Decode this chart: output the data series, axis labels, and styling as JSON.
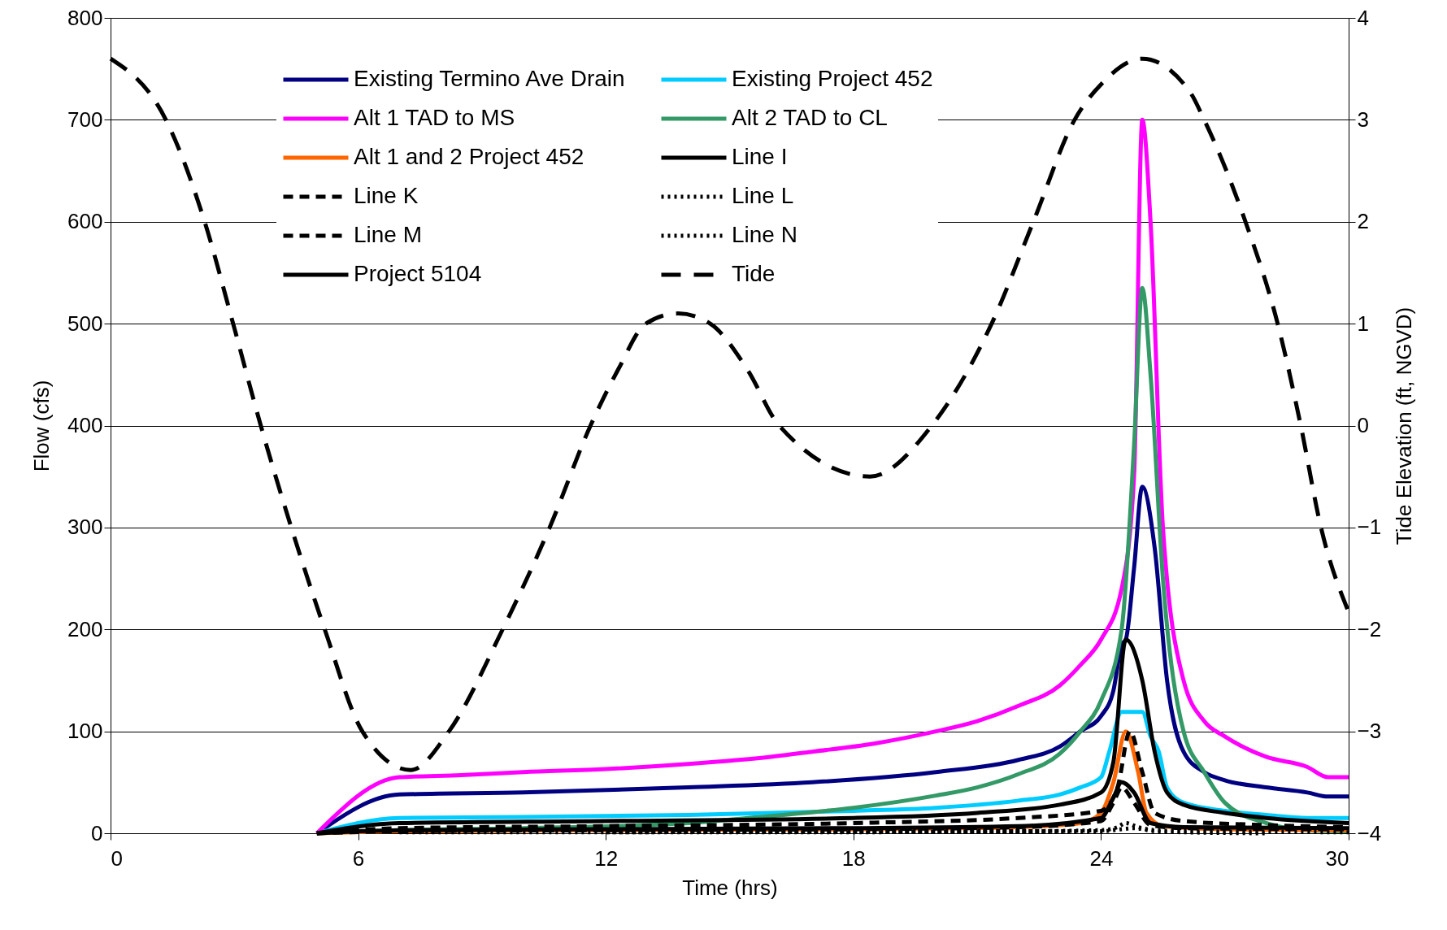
{
  "chart_data": {
    "type": "line",
    "xlabel": "Time (hrs)",
    "ylabel": "Flow (cfs)",
    "y2label": "Tide Elevation (ft, NGVD)",
    "xlim": [
      0,
      30
    ],
    "xticks": [
      0,
      6,
      12,
      18,
      24,
      30
    ],
    "ylim": [
      0,
      800
    ],
    "yticks": [
      0,
      100,
      200,
      300,
      400,
      500,
      600,
      700,
      800
    ],
    "y2lim": [
      -4,
      4
    ],
    "y2ticks": [
      -4,
      -3,
      -2,
      -1,
      0,
      1,
      2,
      3,
      4
    ],
    "grid": "y",
    "legend": "top",
    "series": [
      {
        "name": "Existing Termino Ave Drain",
        "color": "#000080",
        "line_style": "solid",
        "x": [
          5,
          7,
          10,
          14,
          17,
          20,
          22,
          23,
          23.5,
          24,
          24.3,
          24.5,
          24.6,
          24.8,
          25,
          25.3,
          25.6,
          26,
          26.5,
          27,
          28,
          29,
          29.5,
          30
        ],
        "values": [
          0,
          38,
          40,
          45,
          50,
          60,
          72,
          85,
          100,
          115,
          140,
          185,
          190,
          260,
          340,
          280,
          150,
          80,
          60,
          52,
          45,
          40,
          36,
          36
        ]
      },
      {
        "name": "Existing Project 452",
        "color": "#00ccff",
        "line_style": "solid",
        "x": [
          5,
          7,
          10,
          14,
          18,
          20,
          22,
          23,
          23.5,
          24,
          24.2,
          24.5,
          25,
          25.2,
          25.4,
          25.6,
          26,
          27,
          28,
          29,
          30
        ],
        "values": [
          0,
          15,
          16,
          18,
          22,
          25,
          32,
          38,
          45,
          55,
          80,
          119,
          119,
          95,
          80,
          45,
          30,
          22,
          18,
          15,
          15
        ]
      },
      {
        "name": "Alt 1 TAD to MS",
        "color": "#ff00ff",
        "line_style": "solid",
        "x": [
          5,
          7,
          8.5,
          10,
          12,
          14,
          16,
          17,
          18.5,
          20,
          21,
          22,
          23,
          23.5,
          24,
          24.5,
          24.8,
          25,
          25.2,
          25.5,
          26,
          26.5,
          27,
          28,
          29,
          29.5,
          30
        ],
        "values": [
          0,
          55,
          57,
          60,
          63,
          68,
          75,
          80,
          88,
          100,
          110,
          125,
          145,
          165,
          190,
          240,
          350,
          700,
          600,
          300,
          150,
          110,
          95,
          75,
          65,
          55,
          55
        ]
      },
      {
        "name": "Alt 2 TAD to CL",
        "color": "#339966",
        "line_style": "solid",
        "x": [
          5,
          7,
          10,
          14,
          16,
          18,
          20,
          21,
          22,
          23,
          23.5,
          24,
          24.5,
          24.8,
          25,
          25.2,
          25.5,
          26,
          26.5,
          27,
          28,
          29,
          30
        ],
        "values": [
          0,
          3,
          5,
          10,
          17,
          25,
          37,
          45,
          58,
          78,
          100,
          130,
          200,
          380,
          535,
          450,
          250,
          100,
          60,
          30,
          10,
          3,
          2
        ]
      },
      {
        "name": "Alt 1 and 2 Project 452",
        "color": "#ff6600",
        "line_style": "solid",
        "x": [
          5,
          7,
          12,
          18,
          22,
          23.5,
          24,
          24.3,
          24.6,
          24.9,
          25.1,
          25.5,
          27,
          30
        ],
        "values": [
          0,
          2,
          3,
          4,
          6,
          10,
          20,
          50,
          100,
          60,
          20,
          7,
          4,
          3
        ]
      },
      {
        "name": "Line I",
        "color": "#000000",
        "line_style": "solid",
        "x": [
          5,
          7,
          12,
          18,
          21,
          23,
          24,
          24.3,
          24.6,
          25,
          25.3,
          25.6,
          26,
          27,
          28,
          30
        ],
        "values": [
          0,
          10,
          12,
          15,
          20,
          28,
          40,
          70,
          190,
          150,
          80,
          40,
          28,
          20,
          15,
          10
        ]
      },
      {
        "name": "Line K",
        "color": "#000000",
        "line_style": "dashed",
        "x": [
          5,
          7,
          12,
          18,
          22,
          24,
          24.4,
          24.7,
          25,
          25.3,
          26,
          28,
          30
        ],
        "values": [
          0,
          5,
          7,
          10,
          15,
          22,
          45,
          100,
          60,
          20,
          12,
          8,
          6
        ]
      },
      {
        "name": "Line L",
        "color": "#000000",
        "line_style": "dotted",
        "x": [
          7,
          12,
          18,
          22,
          24,
          24.4,
          24.6,
          24.9,
          25.3,
          26,
          30
        ],
        "values": [
          1,
          1,
          2,
          2,
          3,
          6,
          10,
          6,
          3,
          2,
          1
        ]
      },
      {
        "name": "Line M",
        "color": "#000000",
        "line_style": "dashed",
        "x": [
          5,
          7,
          12,
          18,
          22,
          24,
          24.3,
          24.5,
          24.8,
          25.2,
          26,
          30
        ],
        "values": [
          0,
          2,
          3,
          4,
          6,
          12,
          30,
          45,
          30,
          8,
          5,
          4
        ]
      },
      {
        "name": "Line N",
        "color": "#000000",
        "line_style": "dotted",
        "x": [
          12,
          18,
          22,
          24,
          24.5,
          24.8,
          25.3,
          26,
          28
        ],
        "values": [
          1,
          1,
          2,
          2,
          4,
          5,
          2,
          1,
          0
        ]
      },
      {
        "name": "Project 5104",
        "color": "#000000",
        "line_style": "solid",
        "x": [
          5,
          7,
          12,
          18,
          22,
          24,
          24.3,
          24.5,
          24.8,
          25.2,
          26,
          30
        ],
        "values": [
          0,
          3,
          4,
          5,
          7,
          15,
          35,
          50,
          40,
          10,
          6,
          5
        ]
      },
      {
        "name": "Tide",
        "color": "#000000",
        "line_style": "dashed",
        "axis": "y2",
        "x": [
          0,
          1.34,
          2.28,
          2.97,
          3.64,
          4.38,
          5.19,
          6.1,
          7.27,
          8.2,
          9.5,
          10.64,
          11.63,
          12.3,
          12.97,
          13.75,
          14.53,
          15.43,
          16.2,
          18.4,
          19.9,
          21.35,
          22.36,
          23.36,
          24.03,
          25,
          26.16,
          26.5,
          27.5,
          28.28,
          28.84,
          29.33,
          30
        ],
        "values": [
          3.6,
          3.0,
          2.0,
          1.0,
          0,
          -1,
          -2,
          -3,
          -3.38,
          -3,
          -2,
          -1,
          0,
          0.55,
          1.0,
          1.1,
          1.0,
          0.55,
          0,
          -0.5,
          0,
          1.0,
          2.0,
          3.0,
          3.36,
          3.6,
          3.27,
          3.0,
          2.0,
          1.0,
          0,
          -1,
          -1.83
        ]
      }
    ]
  }
}
